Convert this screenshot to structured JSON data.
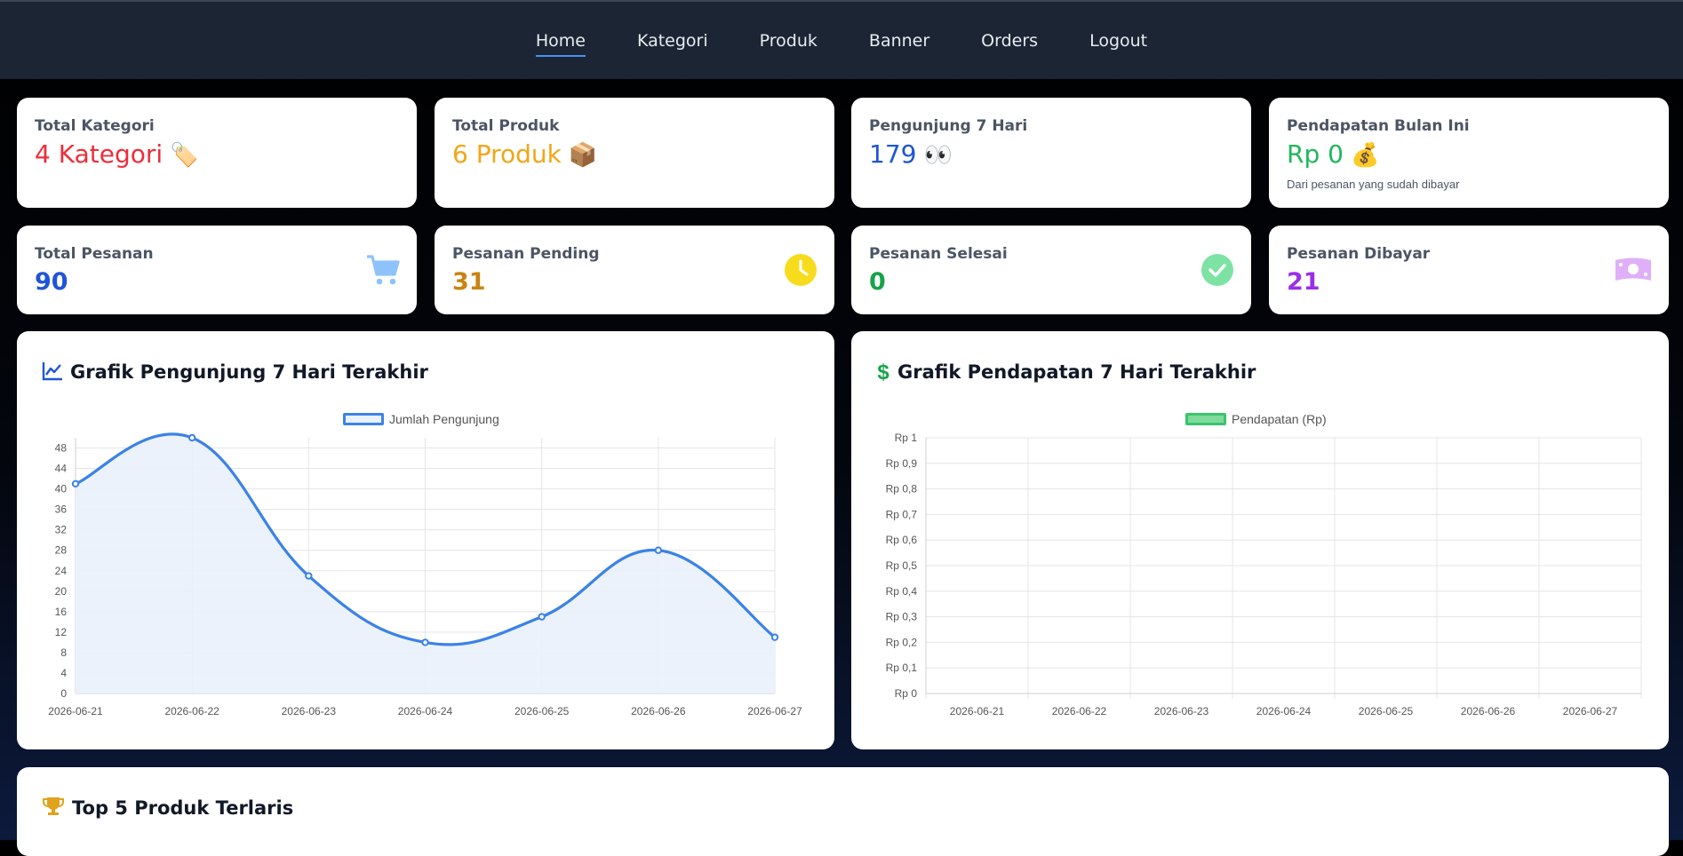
{
  "nav": {
    "items": [
      {
        "label": "Home",
        "active": true
      },
      {
        "label": "Kategori",
        "active": false
      },
      {
        "label": "Produk",
        "active": false
      },
      {
        "label": "Banner",
        "active": false
      },
      {
        "label": "Orders",
        "active": false
      },
      {
        "label": "Logout",
        "active": false
      }
    ]
  },
  "stats_top": [
    {
      "label": "Total Kategori",
      "value": "4 Kategori",
      "emoji": "🏷️",
      "color": "#ef2d3a"
    },
    {
      "label": "Total Produk",
      "value": "6 Produk",
      "emoji": "📦",
      "color": "#f2a516"
    },
    {
      "label": "Pengunjung 7 Hari",
      "value": "179",
      "emoji": "👀",
      "color": "#1f55d6"
    },
    {
      "label": "Pendapatan Bulan Ini",
      "value": "Rp 0",
      "emoji": "💰",
      "color": "#1fb75a",
      "sub": "Dari pesanan yang sudah dibayar"
    }
  ],
  "stats_bottom": [
    {
      "label": "Total Pesanan",
      "value": "90",
      "icon": "cart-icon",
      "color": "#1f55d6",
      "icon_color": "#8ec2fb"
    },
    {
      "label": "Pesanan Pending",
      "value": "31",
      "icon": "clock-icon",
      "color": "#c98412",
      "icon_color": "#f7dc1e"
    },
    {
      "label": "Pesanan Selesai",
      "value": "0",
      "icon": "check-circle-icon",
      "color": "#16a34a",
      "icon_color": "#7de3a4"
    },
    {
      "label": "Pesanan Dibayar",
      "value": "21",
      "icon": "money-bill-icon",
      "color": "#9b2ee6",
      "icon_color": "#dfb0f7"
    }
  ],
  "visitor_panel": {
    "title": "Grafik Pengunjung 7 Hari Terakhir",
    "icon": "line-chart-icon"
  },
  "revenue_panel": {
    "title": "Grafik Pendapatan 7 Hari Terakhir",
    "icon": "dollar-icon"
  },
  "top_products": {
    "title": "Top 5 Produk Terlaris",
    "icon": "trophy-icon"
  },
  "chart_data": [
    {
      "type": "line",
      "title": "",
      "series": [
        {
          "name": "Jumlah Pengunjung",
          "values": [
            41,
            50,
            23,
            10,
            15,
            28,
            11
          ],
          "color": "#3b82e6"
        }
      ],
      "x": [
        "2026-06-21",
        "2026-06-22",
        "2026-06-23",
        "2026-06-24",
        "2026-06-25",
        "2026-06-26",
        "2026-06-27"
      ],
      "yticks": [
        "0",
        "4",
        "8",
        "12",
        "16",
        "20",
        "24",
        "28",
        "32",
        "36",
        "40",
        "44",
        "48"
      ],
      "ylim": [
        0,
        50
      ],
      "grid": true,
      "legend": "top-center",
      "fill": true
    },
    {
      "type": "bar",
      "title": "",
      "series": [
        {
          "name": "Pendapatan (Rp)",
          "values": [
            0,
            0,
            0,
            0,
            0,
            0,
            0
          ],
          "color": "#3ac46c"
        }
      ],
      "x": [
        "2026-06-21",
        "2026-06-22",
        "2026-06-23",
        "2026-06-24",
        "2026-06-25",
        "2026-06-26",
        "2026-06-27"
      ],
      "yticks": [
        "Rp 0",
        "Rp 0,1",
        "Rp 0,2",
        "Rp 0,3",
        "Rp 0,4",
        "Rp 0,5",
        "Rp 0,6",
        "Rp 0,7",
        "Rp 0,8",
        "Rp 0,9",
        "Rp 1"
      ],
      "ylim": [
        0,
        1
      ],
      "grid": true,
      "legend": "top-center"
    }
  ]
}
